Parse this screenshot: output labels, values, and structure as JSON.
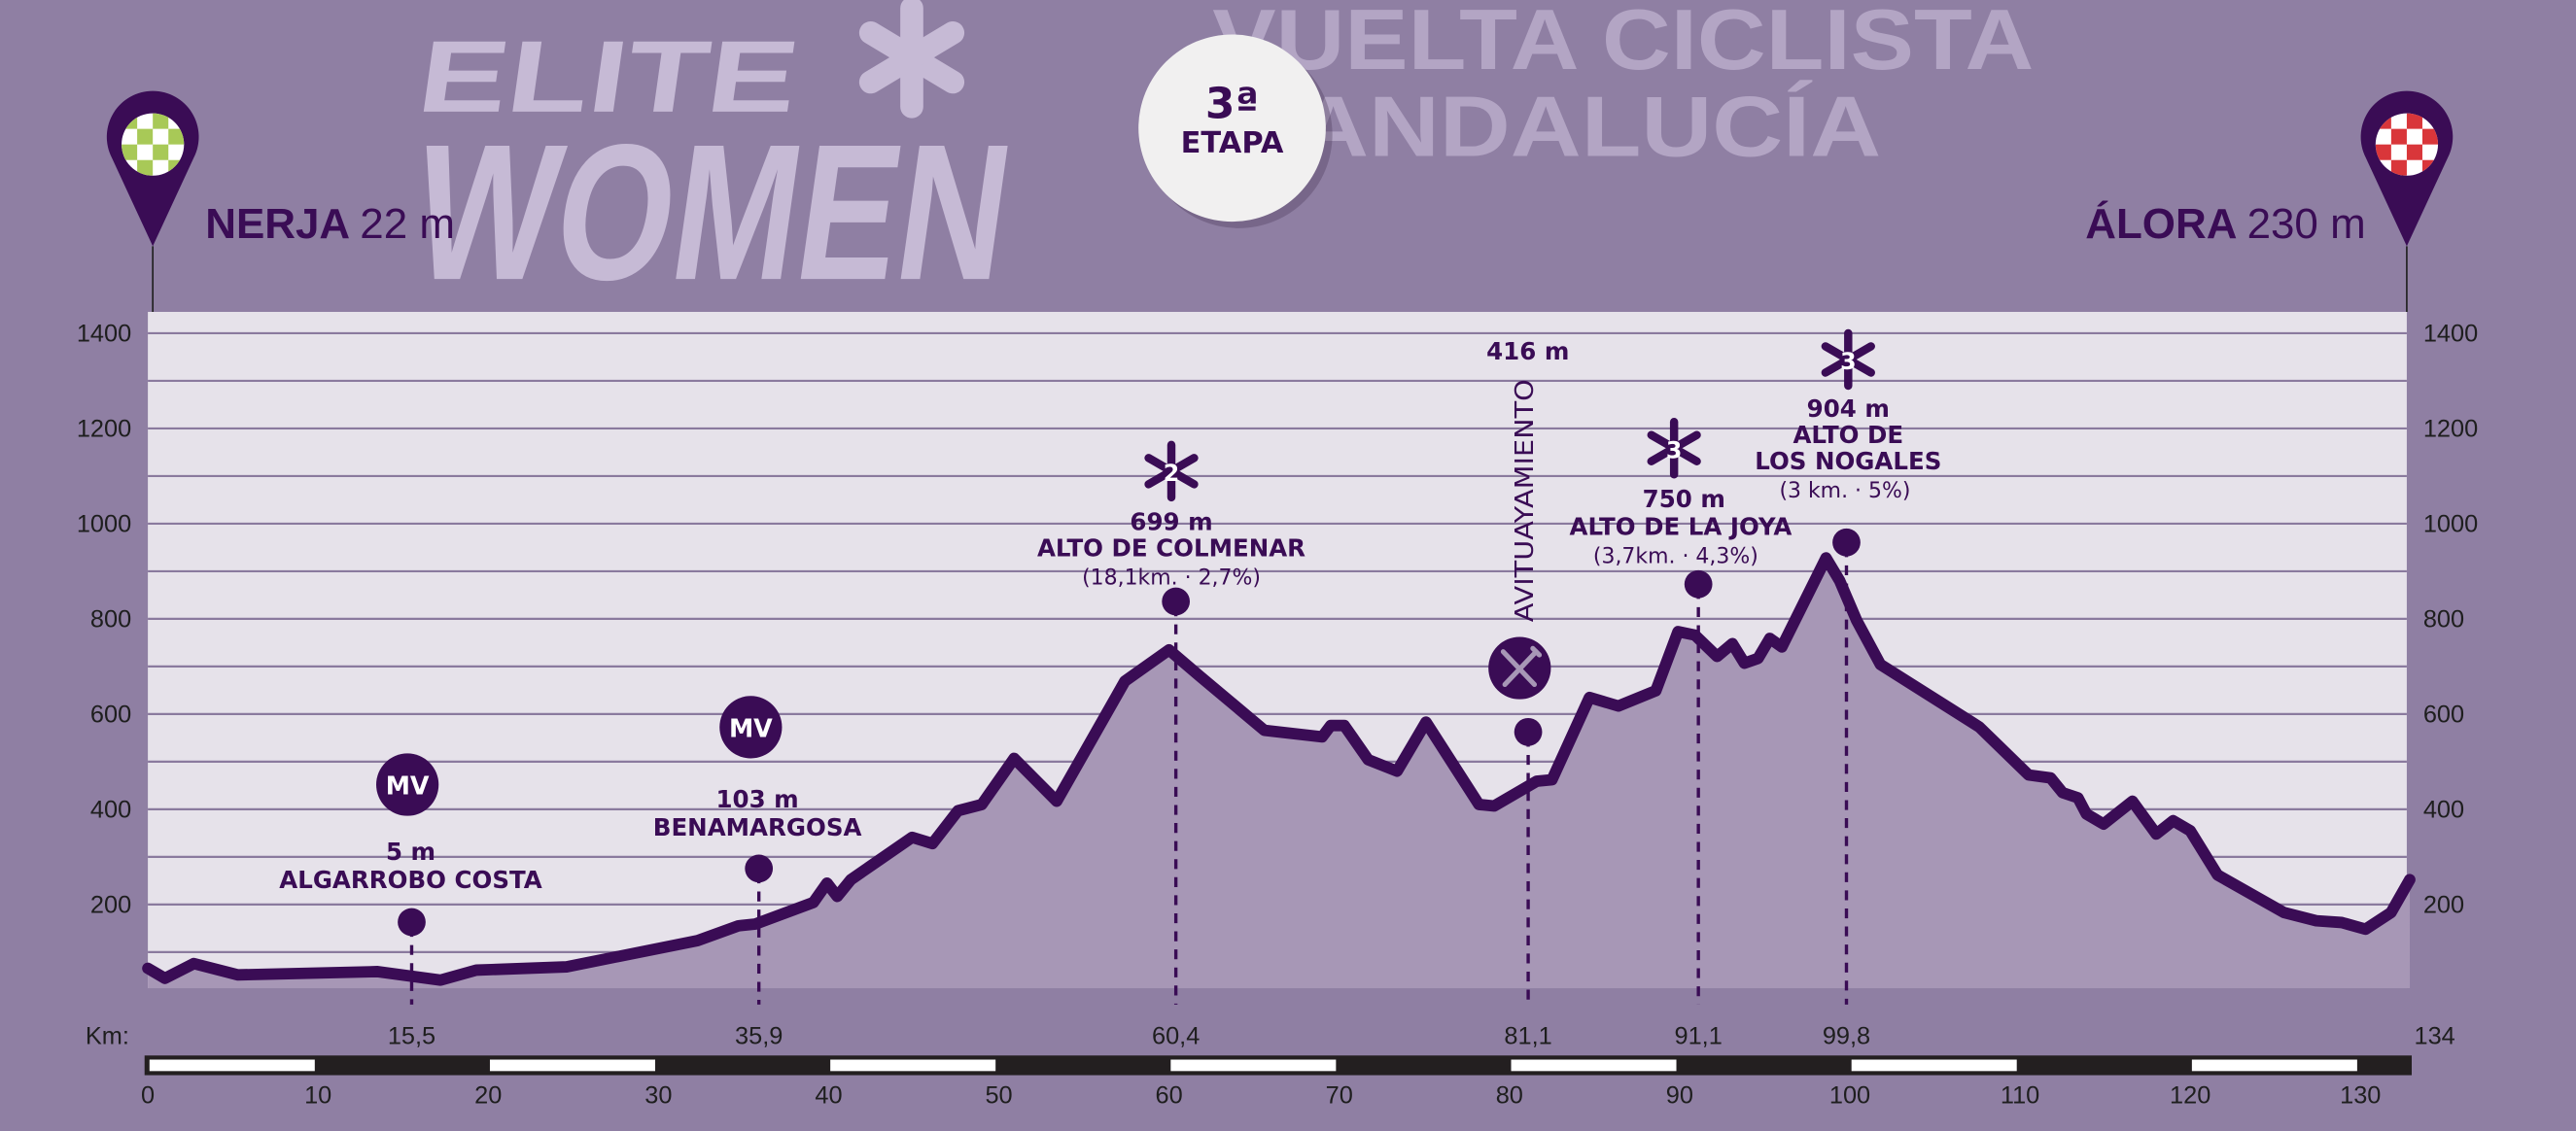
{
  "header": {
    "logo_line1": "ELITE",
    "logo_line2": "WOMEN",
    "race_line1": "VUELTA CICLISTA",
    "race_line2": "ANDALUCÍA",
    "stage_number": "3ª",
    "stage_label": "ETAPA",
    "start_name": "NERJA",
    "start_elev": "22 m",
    "finish_name": "ÁLORA",
    "finish_elev": "230 m"
  },
  "colors": {
    "background": "#8f7fa3",
    "plot_bg": "#e6e2ea",
    "profile": "#3a0c55",
    "fill": "#a797b6",
    "grid": "#8a7a9e",
    "start_flag": "#a8c957",
    "finish_flag": "#d9363a"
  },
  "chart_data": {
    "type": "area",
    "title": "3ª ETAPA",
    "xlabel": "Km:",
    "ylabel": "",
    "xlim": [
      0,
      134
    ],
    "ylim": [
      0,
      1450
    ],
    "yticks": [
      200,
      400,
      600,
      800,
      1000,
      1200,
      1400
    ],
    "ytick_labels": [
      "200",
      "400",
      "600",
      "800",
      "1000",
      "1200",
      "1400"
    ],
    "grid_step": 100,
    "grid": true,
    "scale_ticks": [
      "0",
      "10",
      "20",
      "30",
      "40",
      "50",
      "60",
      "70",
      "80",
      "90",
      "100",
      "110",
      "120",
      "130"
    ],
    "km_labels": [
      {
        "km": 15.5,
        "label": "15,5"
      },
      {
        "km": 35.9,
        "label": "35,9"
      },
      {
        "km": 60.4,
        "label": "60,4"
      },
      {
        "km": 81.1,
        "label": "81,1"
      },
      {
        "km": 91.1,
        "label": "91,1"
      },
      {
        "km": 99.8,
        "label": "99,8"
      },
      {
        "km": 134,
        "label": "134"
      }
    ],
    "profile": [
      [
        0,
        66
      ],
      [
        1,
        45
      ],
      [
        2.7,
        76
      ],
      [
        5.3,
        52
      ],
      [
        13.5,
        59
      ],
      [
        17.2,
        41
      ],
      [
        19.3,
        62
      ],
      [
        24.6,
        69
      ],
      [
        32.3,
        124
      ],
      [
        34.7,
        155
      ],
      [
        35.7,
        159
      ],
      [
        39.1,
        204
      ],
      [
        39.9,
        245
      ],
      [
        40.5,
        217
      ],
      [
        41.3,
        252
      ],
      [
        44.9,
        341
      ],
      [
        46.1,
        328
      ],
      [
        47.6,
        397
      ],
      [
        49,
        410
      ],
      [
        50.9,
        507
      ],
      [
        53.4,
        417
      ],
      [
        57.4,
        669
      ],
      [
        60,
        735
      ],
      [
        61.8,
        680
      ],
      [
        65.6,
        566
      ],
      [
        69,
        552
      ],
      [
        69.5,
        576
      ],
      [
        70.3,
        576
      ],
      [
        71.7,
        504
      ],
      [
        73.4,
        480
      ],
      [
        75.1,
        583
      ],
      [
        78.2,
        410
      ],
      [
        79.1,
        407
      ],
      [
        81.6,
        459
      ],
      [
        82.5,
        462
      ],
      [
        84.7,
        635
      ],
      [
        86.4,
        617
      ],
      [
        88.6,
        649
      ],
      [
        89.9,
        773
      ],
      [
        90.9,
        766
      ],
      [
        92.2,
        721
      ],
      [
        93.1,
        748
      ],
      [
        93.8,
        707
      ],
      [
        94.6,
        717
      ],
      [
        95.3,
        759
      ],
      [
        96,
        741
      ],
      [
        98.6,
        928
      ],
      [
        99.4,
        880
      ],
      [
        100.4,
        797
      ],
      [
        101.8,
        704
      ],
      [
        107.6,
        573
      ],
      [
        110.5,
        472
      ],
      [
        111.8,
        466
      ],
      [
        112.5,
        435
      ],
      [
        113.4,
        424
      ],
      [
        113.9,
        390
      ],
      [
        114.9,
        369
      ],
      [
        116.6,
        417
      ],
      [
        118,
        348
      ],
      [
        119,
        376
      ],
      [
        120,
        355
      ],
      [
        121.6,
        262
      ],
      [
        125.5,
        183
      ],
      [
        127.4,
        166
      ],
      [
        128.9,
        162
      ],
      [
        130.3,
        148
      ],
      [
        131.8,
        183
      ],
      [
        132.9,
        252
      ]
    ],
    "markers": [
      {
        "km": 15.5,
        "type": "MV",
        "badge": "MV",
        "elev": "5 m",
        "name": "ALGARROBO COSTA"
      },
      {
        "km": 35.9,
        "type": "MV",
        "badge": "MV",
        "elev": "103 m",
        "name": "BENAMARGOSA"
      },
      {
        "km": 60.4,
        "type": "climb",
        "badge": "2",
        "elev": "699 m",
        "name": "ALTO DE COLMENAR",
        "detail": "(18,1km. · 2,7%)"
      },
      {
        "km": 81.1,
        "type": "feed",
        "elev": "416 m",
        "name": "AVITUAYAMIENTO"
      },
      {
        "km": 91.1,
        "type": "climb",
        "badge": "3",
        "elev": "750 m",
        "name": "ALTO DE LA JOYA",
        "detail": "(3,7km. · 4,3%)"
      },
      {
        "km": 99.8,
        "type": "climb",
        "badge": "3",
        "elev": "904 m",
        "name": "ALTO DE",
        "name2": "LOS NOGALES",
        "detail": "(3 km. · 5%)"
      }
    ]
  }
}
